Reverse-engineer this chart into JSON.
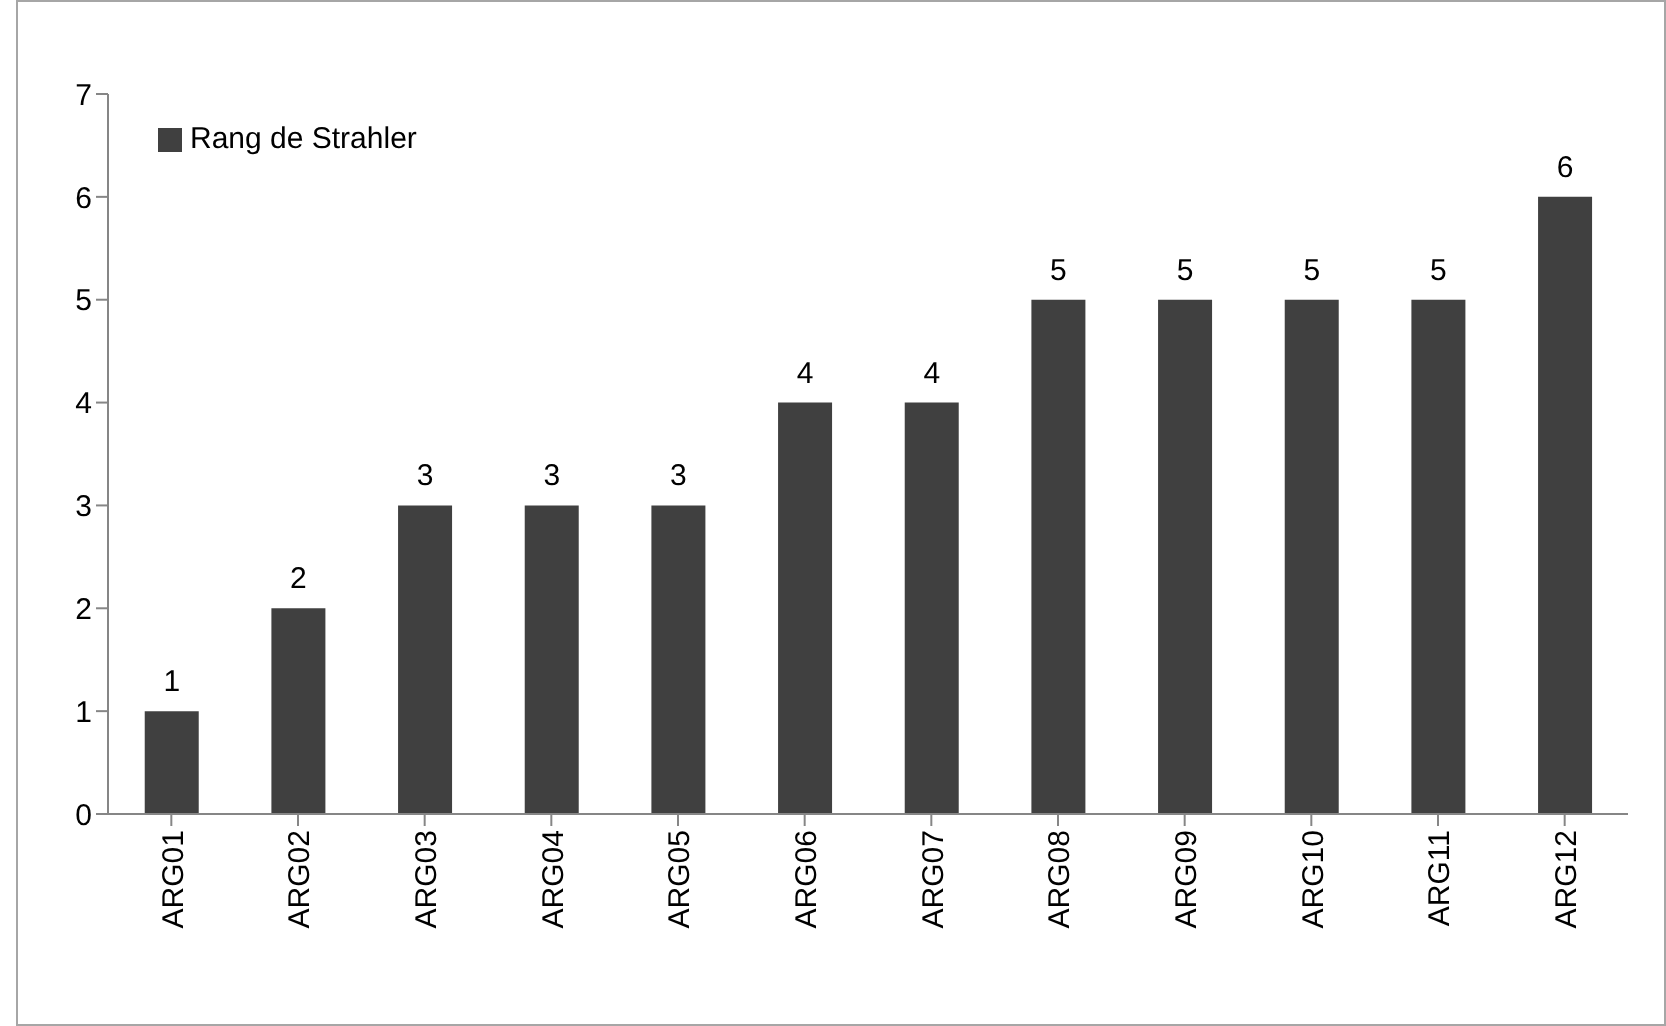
{
  "chart_data": {
    "type": "bar",
    "categories": [
      "ARG01",
      "ARG02",
      "ARG03",
      "ARG04",
      "ARG05",
      "ARG06",
      "ARG07",
      "ARG08",
      "ARG09",
      "ARG10",
      "ARG11",
      "ARG12"
    ],
    "series": [
      {
        "name": "Rang de Strahler",
        "color": "#404040",
        "values": [
          1,
          2,
          3,
          3,
          3,
          4,
          4,
          5,
          5,
          5,
          5,
          6
        ]
      }
    ],
    "ylim": [
      0,
      7
    ],
    "yticks": [
      0,
      1,
      2,
      3,
      4,
      5,
      6,
      7
    ],
    "grid": false,
    "legend": "top left",
    "data_labels": true
  }
}
